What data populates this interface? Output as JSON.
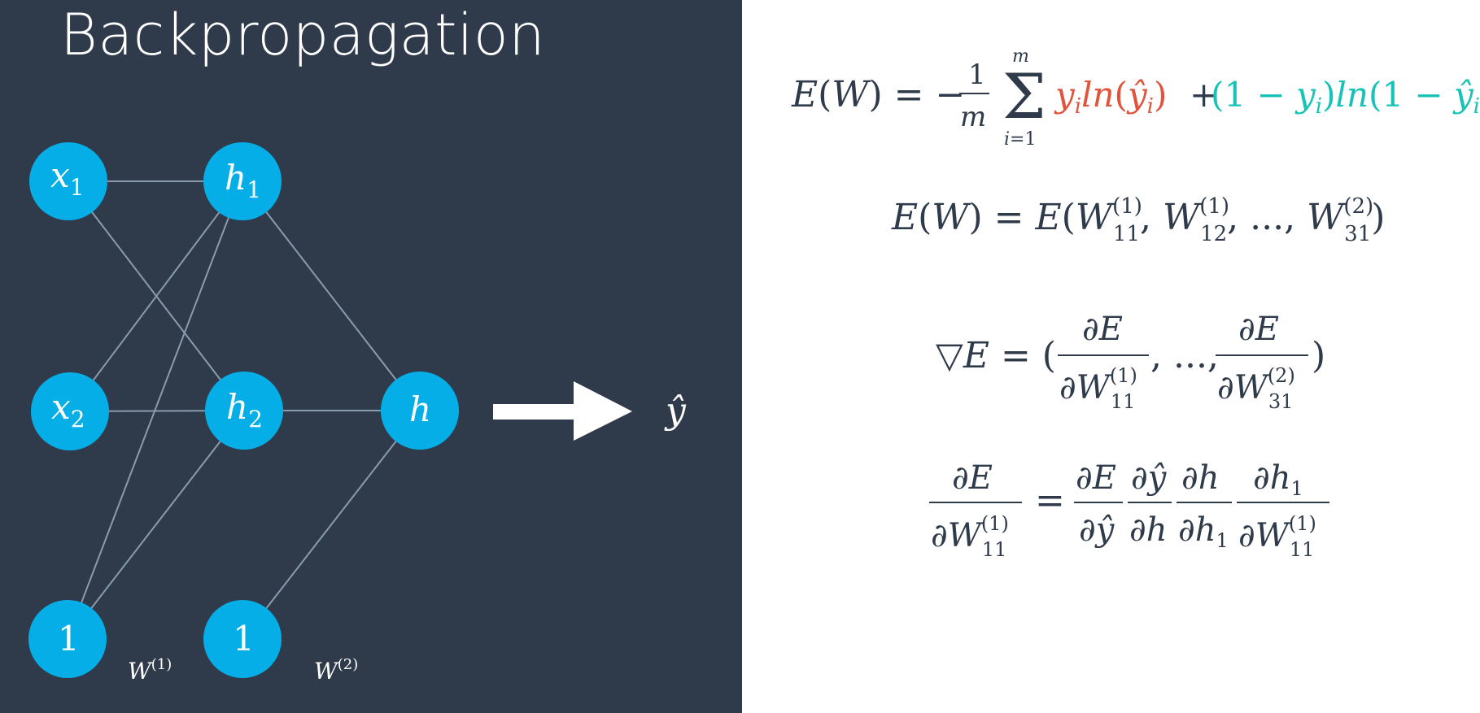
{
  "title": "Backpropagation",
  "colors": {
    "panel_background": "#2f3b4a",
    "node_fill": "#05aee6",
    "edge": "#8a9bb0",
    "arrow": "#ffffff",
    "equation_text": "#2f3b4a",
    "highlight_red": "#e2533c",
    "highlight_teal": "#16c3b6"
  },
  "network": {
    "input_nodes": [
      "x1",
      "x2",
      "1"
    ],
    "hidden_nodes": [
      "h1",
      "h2",
      "1"
    ],
    "output_node": "h",
    "prediction": "ŷ",
    "weight_labels": [
      "W(1)",
      "W(2)"
    ],
    "bias_label": "1"
  },
  "equations": {
    "error_function": "E(W) = −(1/m) Σ_{i=1}^{m} y_i ln(ŷ_i) + (1 − y_i) ln(1 − ŷ_i)",
    "error_of_weights": "E(W) = E(W_11^(1), W_12^(1), ..., W_31^(2))",
    "gradient": "∇E = (∂E/∂W_11^(1), ..., ∂E/∂W_31^(2))",
    "chain_rule": "∂E/∂W_11^(1) = (∂E/∂ŷ)(∂ŷ/∂h)(∂h/∂h_1)(∂h_1/∂W_11^(1))"
  }
}
